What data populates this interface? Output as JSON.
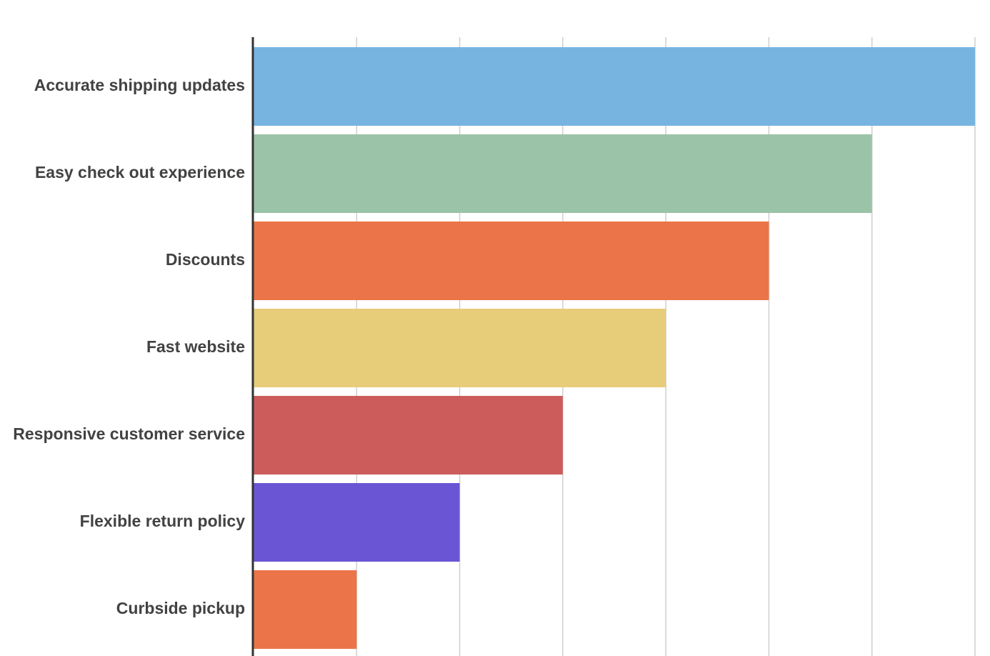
{
  "chart_data": {
    "type": "bar",
    "orientation": "horizontal",
    "title": "",
    "xlabel": "",
    "ylabel": "",
    "categories": [
      "Accurate shipping updates",
      "Easy check out experience",
      "Discounts",
      "Fast website",
      "Responsive customer service",
      "Flexible return policy",
      "Curbside pickup"
    ],
    "values": [
      7,
      6,
      5,
      4,
      3,
      2,
      1
    ],
    "colors": [
      "#77b5e0",
      "#9bc3a8",
      "#ec7449",
      "#e7cc7a",
      "#cc5c5b",
      "#6a56d5",
      "#ec7449"
    ],
    "xlim": [
      0,
      7
    ],
    "x_ticks": [
      0,
      1,
      2,
      3,
      4,
      5,
      6,
      7
    ],
    "x_tick_labels_shown": false,
    "grid": true,
    "legend": "none"
  }
}
